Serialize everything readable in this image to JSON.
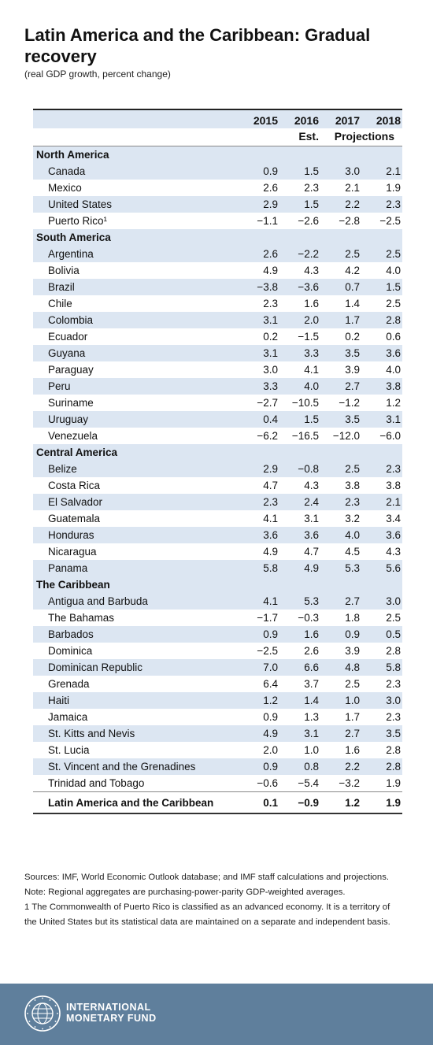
{
  "header": {
    "title": "Latin America and the Caribbean: Gradual recovery",
    "subtitle": "(real GDP growth, percent change)"
  },
  "chart_data": {
    "type": "table",
    "columns": [
      "2015",
      "2016",
      "2017",
      "2018"
    ],
    "subheader": {
      "est": "Est.",
      "projections": "Projections"
    },
    "groups": [
      {
        "name": "North America",
        "rows": [
          {
            "label": "Canada",
            "values": [
              "0.9",
              "1.5",
              "3.0",
              "2.1"
            ]
          },
          {
            "label": "Mexico",
            "values": [
              "2.6",
              "2.3",
              "2.1",
              "1.9"
            ]
          },
          {
            "label": "United States",
            "values": [
              "2.9",
              "1.5",
              "2.2",
              "2.3"
            ]
          },
          {
            "label": "Puerto Rico¹",
            "values": [
              "−1.1",
              "−2.6",
              "−2.8",
              "−2.5"
            ]
          }
        ]
      },
      {
        "name": "South America",
        "rows": [
          {
            "label": "Argentina",
            "values": [
              "2.6",
              "−2.2",
              "2.5",
              "2.5"
            ]
          },
          {
            "label": "Bolivia",
            "values": [
              "4.9",
              "4.3",
              "4.2",
              "4.0"
            ]
          },
          {
            "label": "Brazil",
            "values": [
              "−3.8",
              "−3.6",
              "0.7",
              "1.5"
            ]
          },
          {
            "label": "Chile",
            "values": [
              "2.3",
              "1.6",
              "1.4",
              "2.5"
            ]
          },
          {
            "label": "Colombia",
            "values": [
              "3.1",
              "2.0",
              "1.7",
              "2.8"
            ]
          },
          {
            "label": "Ecuador",
            "values": [
              "0.2",
              "−1.5",
              "0.2",
              "0.6"
            ]
          },
          {
            "label": "Guyana",
            "values": [
              "3.1",
              "3.3",
              "3.5",
              "3.6"
            ]
          },
          {
            "label": "Paraguay",
            "values": [
              "3.0",
              "4.1",
              "3.9",
              "4.0"
            ]
          },
          {
            "label": "Peru",
            "values": [
              "3.3",
              "4.0",
              "2.7",
              "3.8"
            ]
          },
          {
            "label": "Suriname",
            "values": [
              "−2.7",
              "−10.5",
              "−1.2",
              "1.2"
            ]
          },
          {
            "label": "Uruguay",
            "values": [
              "0.4",
              "1.5",
              "3.5",
              "3.1"
            ]
          },
          {
            "label": "Venezuela",
            "values": [
              "−6.2",
              "−16.5",
              "−12.0",
              "−6.0"
            ]
          }
        ]
      },
      {
        "name": "Central America",
        "rows": [
          {
            "label": "Belize",
            "values": [
              "2.9",
              "−0.8",
              "2.5",
              "2.3"
            ]
          },
          {
            "label": "Costa Rica",
            "values": [
              "4.7",
              "4.3",
              "3.8",
              "3.8"
            ]
          },
          {
            "label": "El Salvador",
            "values": [
              "2.3",
              "2.4",
              "2.3",
              "2.1"
            ]
          },
          {
            "label": "Guatemala",
            "values": [
              "4.1",
              "3.1",
              "3.2",
              "3.4"
            ]
          },
          {
            "label": "Honduras",
            "values": [
              "3.6",
              "3.6",
              "4.0",
              "3.6"
            ]
          },
          {
            "label": "Nicaragua",
            "values": [
              "4.9",
              "4.7",
              "4.5",
              "4.3"
            ]
          },
          {
            "label": "Panama",
            "values": [
              "5.8",
              "4.9",
              "5.3",
              "5.6"
            ]
          }
        ]
      },
      {
        "name": "The Caribbean",
        "rows": [
          {
            "label": "Antigua and Barbuda",
            "values": [
              "4.1",
              "5.3",
              "2.7",
              "3.0"
            ]
          },
          {
            "label": "The Bahamas",
            "values": [
              "−1.7",
              "−0.3",
              "1.8",
              "2.5"
            ]
          },
          {
            "label": "Barbados",
            "values": [
              "0.9",
              "1.6",
              "0.9",
              "0.5"
            ]
          },
          {
            "label": "Dominica",
            "values": [
              "−2.5",
              "2.6",
              "3.9",
              "2.8"
            ]
          },
          {
            "label": "Dominican Republic",
            "values": [
              "7.0",
              "6.6",
              "4.8",
              "5.8"
            ]
          },
          {
            "label": "Grenada",
            "values": [
              "6.4",
              "3.7",
              "2.5",
              "2.3"
            ]
          },
          {
            "label": "Haiti",
            "values": [
              "1.2",
              "1.4",
              "1.0",
              "3.0"
            ]
          },
          {
            "label": "Jamaica",
            "values": [
              "0.9",
              "1.3",
              "1.7",
              "2.3"
            ]
          },
          {
            "label": "St. Kitts and Nevis",
            "values": [
              "4.9",
              "3.1",
              "2.7",
              "3.5"
            ]
          },
          {
            "label": "St. Lucia",
            "values": [
              "2.0",
              "1.0",
              "1.6",
              "2.8"
            ]
          },
          {
            "label": "St. Vincent and the Grenadines",
            "values": [
              "0.9",
              "0.8",
              "2.2",
              "2.8"
            ]
          },
          {
            "label": "Trinidad and Tobago",
            "values": [
              "−0.6",
              "−5.4",
              "−3.2",
              "1.9"
            ]
          }
        ]
      }
    ],
    "total": {
      "label": "Latin America and the Caribbean",
      "values": [
        "0.1",
        "−0.9",
        "1.2",
        "1.9"
      ]
    }
  },
  "notes": {
    "sources": "Sources: IMF, World Economic Outlook database; and IMF staff calculations and projections.",
    "note": "Note: Regional aggregates are purchasing-power-parity GDP-weighted averages.",
    "footnote": "1 The Commonwealth of Puerto Rico is classified as an advanced economy. It is a territory of the United States but its statistical data are maintained on a separate and independent basis."
  },
  "footer": {
    "org_line1": "INTERNATIONAL",
    "org_line2": "MONETARY FUND",
    "logo_text": "INTERNATIONAL MONETARY FUND",
    "background_color": "#5f7f9c",
    "table_shade_color": "#dce6f2"
  }
}
